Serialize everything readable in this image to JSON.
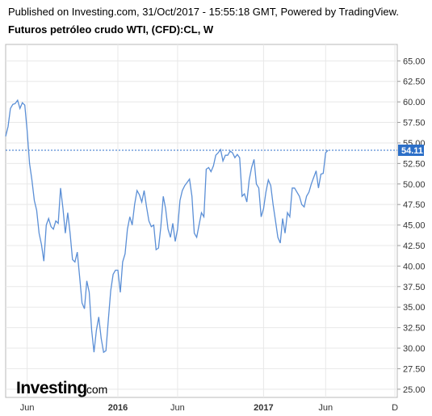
{
  "header": {
    "published": "Published on Investing.com, 31/Oct/2017 - 15:55:18 GMT, Powered by TradingView.",
    "symbol": "Futuros petróleo crudo WTI, (CFD):CL, W"
  },
  "logo": {
    "brand": "Investing",
    "suffix": ".com"
  },
  "colors": {
    "line": "#5b8fd6",
    "price_badge": "#2c6fc8",
    "grid": "#e8e8e8",
    "dotted": "#2c6fc8"
  },
  "chart_data": {
    "type": "line",
    "title": "Futuros petróleo crudo WTI, (CFD):CL, W",
    "xlabel": "",
    "ylabel": "",
    "ylim": [
      24,
      67
    ],
    "xlim": [
      0,
      164
    ],
    "y_ticks": [
      "65.00",
      "62.50",
      "60.00",
      "57.50",
      "55.00",
      "52.50",
      "50.00",
      "47.50",
      "45.00",
      "42.50",
      "40.00",
      "37.50",
      "35.00",
      "32.50",
      "30.00",
      "27.50",
      "25.00"
    ],
    "x_ticks": [
      {
        "label": "Jun",
        "x": 9,
        "bold": false
      },
      {
        "label": "2016",
        "x": 47,
        "bold": true
      },
      {
        "label": "Jun",
        "x": 72,
        "bold": false
      },
      {
        "label": "2017",
        "x": 108,
        "bold": true
      },
      {
        "label": "Jun",
        "x": 134,
        "bold": false
      },
      {
        "label": "D",
        "x": 163,
        "bold": false
      }
    ],
    "last_price": 54.11,
    "last_price_label": "54.11",
    "grid": true,
    "series": [
      {
        "values": [
          55.8,
          57.0,
          59.2,
          59.7,
          59.8,
          60.2,
          59.2,
          59.9,
          59.6,
          56.5,
          52.5,
          50.5,
          48.0,
          46.8,
          44.0,
          42.6,
          40.6,
          45.0,
          45.8,
          44.8,
          44.5,
          45.5,
          45.2,
          49.5,
          47.0,
          44.0,
          46.5,
          44.0,
          40.8,
          40.5,
          41.7,
          38.6,
          35.5,
          34.8,
          38.2,
          36.8,
          32.2,
          29.5,
          32.2,
          33.8,
          31.2,
          29.5,
          29.7,
          33.5,
          37.0,
          39.0,
          39.5,
          39.5,
          36.8,
          40.5,
          41.5,
          44.5,
          46.0,
          45.0,
          47.5,
          49.2,
          48.7,
          47.8,
          49.2,
          47.2,
          45.5,
          44.8,
          45.0,
          42.0,
          42.2,
          44.8,
          48.5,
          47.0,
          44.5,
          43.5,
          45.2,
          43.0,
          44.5,
          48.0,
          49.2,
          49.8,
          50.2,
          50.6,
          48.5,
          44.0,
          43.5,
          45.0,
          46.5,
          46.0,
          51.8,
          52.0,
          51.5,
          52.2,
          53.5,
          53.8,
          54.2,
          52.8,
          53.5,
          53.5,
          54.0,
          53.8,
          53.2,
          53.6,
          53.2,
          48.5,
          48.8,
          47.8,
          50.5,
          52.0,
          53.0,
          50.0,
          49.5,
          46.0,
          47.0,
          49.0,
          50.5,
          49.8,
          47.5,
          45.5,
          43.5,
          42.8,
          45.8,
          44.0,
          46.5,
          46.0,
          49.5,
          49.5,
          49.0,
          48.5,
          47.5,
          47.2,
          48.5,
          49.0,
          50.0,
          50.8,
          51.6,
          49.5,
          51.2,
          51.3,
          53.8,
          54.1
        ]
      }
    ]
  }
}
